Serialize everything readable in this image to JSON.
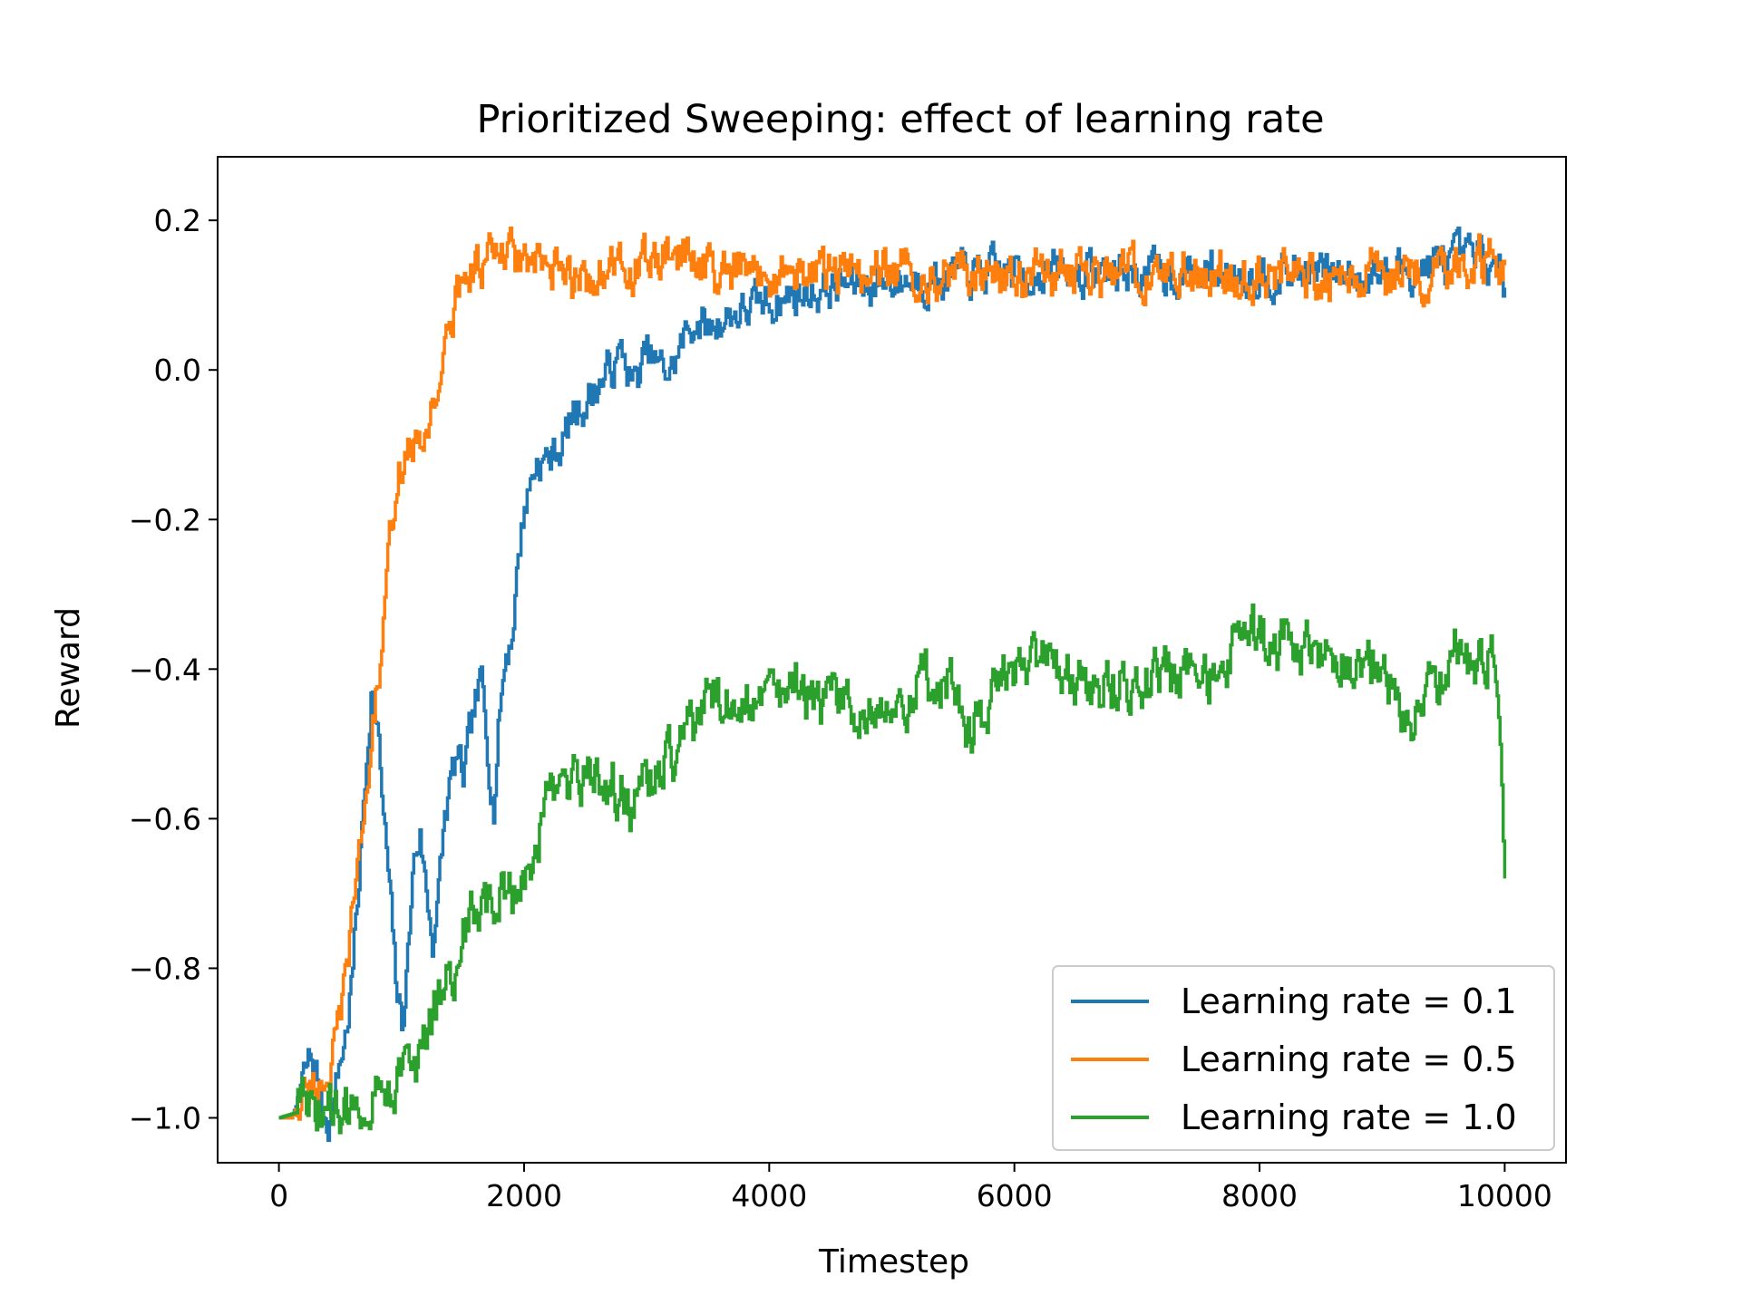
{
  "chart_data": {
    "type": "line",
    "title": "Prioritized Sweeping: effect of learning rate",
    "xlabel": "Timestep",
    "ylabel": "Reward",
    "xlim": [
      -500,
      10500
    ],
    "ylim": [
      -1.06,
      0.285
    ],
    "xticks": [
      0,
      2000,
      4000,
      6000,
      8000,
      10000
    ],
    "yticks": [
      -1.0,
      -0.8,
      -0.6,
      -0.4,
      -0.2,
      0.0,
      0.2
    ],
    "xtick_labels": [
      "0",
      "2000",
      "4000",
      "6000",
      "8000",
      "10000"
    ],
    "ytick_labels": [
      "−1.0",
      "−0.8",
      "−0.6",
      "−0.4",
      "−0.2",
      "0.0",
      "0.2"
    ],
    "grid": false,
    "legend_position": "lower-right",
    "series": [
      {
        "name": "Learning rate = 0.1",
        "color": "#1f77b4",
        "noise": 0.045,
        "x": [
          0,
          100,
          150,
          200,
          250,
          300,
          350,
          400,
          450,
          500,
          550,
          600,
          650,
          700,
          750,
          800,
          850,
          900,
          950,
          1000,
          1050,
          1100,
          1150,
          1200,
          1250,
          1300,
          1350,
          1400,
          1450,
          1500,
          1550,
          1600,
          1650,
          1700,
          1750,
          1800,
          1850,
          1900,
          1950,
          2000,
          2100,
          2200,
          2300,
          2400,
          2500,
          2600,
          2700,
          2800,
          2900,
          3000,
          3100,
          3200,
          3300,
          3400,
          3500,
          3600,
          3800,
          4000,
          4200,
          4500,
          5000,
          6000,
          7000,
          8000,
          9000,
          9500,
          9800,
          10000
        ],
        "y": [
          -1.0,
          -1.0,
          -0.98,
          -0.95,
          -0.92,
          -0.94,
          -0.99,
          -1.0,
          -0.97,
          -0.92,
          -0.88,
          -0.8,
          -0.68,
          -0.55,
          -0.42,
          -0.48,
          -0.6,
          -0.7,
          -0.82,
          -0.88,
          -0.78,
          -0.65,
          -0.62,
          -0.7,
          -0.76,
          -0.7,
          -0.6,
          -0.55,
          -0.52,
          -0.55,
          -0.5,
          -0.45,
          -0.42,
          -0.5,
          -0.58,
          -0.45,
          -0.38,
          -0.35,
          -0.25,
          -0.18,
          -0.12,
          -0.12,
          -0.1,
          -0.06,
          -0.04,
          -0.02,
          0.0,
          0.02,
          -0.02,
          0.02,
          0.0,
          0.0,
          0.04,
          0.07,
          0.05,
          0.07,
          0.08,
          0.09,
          0.1,
          0.11,
          0.12,
          0.13,
          0.13,
          0.13,
          0.13,
          0.14,
          0.15,
          0.11
        ]
      },
      {
        "name": "Learning rate = 0.5",
        "color": "#ff7f0e",
        "noise": 0.05,
        "x": [
          0,
          100,
          200,
          300,
          400,
          500,
          550,
          600,
          650,
          700,
          750,
          800,
          850,
          900,
          950,
          1000,
          1050,
          1100,
          1150,
          1200,
          1250,
          1300,
          1350,
          1400,
          1450,
          1500,
          1600,
          1700,
          1800,
          1900,
          2000,
          2200,
          2400,
          2600,
          2800,
          3000,
          3200,
          3400,
          3600,
          4000,
          5000,
          6000,
          7000,
          8000,
          9000,
          9500,
          9800,
          10000
        ],
        "y": [
          -1.0,
          -1.0,
          -0.97,
          -0.95,
          -0.94,
          -0.88,
          -0.8,
          -0.72,
          -0.66,
          -0.58,
          -0.5,
          -0.42,
          -0.35,
          -0.25,
          -0.14,
          -0.12,
          -0.1,
          -0.1,
          -0.12,
          -0.08,
          -0.04,
          -0.01,
          0.02,
          0.05,
          0.1,
          0.13,
          0.14,
          0.15,
          0.15,
          0.15,
          0.14,
          0.13,
          0.12,
          0.13,
          0.13,
          0.14,
          0.15,
          0.15,
          0.12,
          0.13,
          0.13,
          0.13,
          0.13,
          0.13,
          0.13,
          0.14,
          0.15,
          0.14
        ]
      },
      {
        "name": "Learning rate = 1.0",
        "color": "#2ca02c",
        "noise": 0.06,
        "x": [
          0,
          200,
          400,
          600,
          700,
          800,
          900,
          1000,
          1100,
          1200,
          1300,
          1400,
          1500,
          1600,
          1700,
          1800,
          1900,
          2000,
          2100,
          2200,
          2300,
          2400,
          2600,
          2800,
          2900,
          3000,
          3200,
          3400,
          3600,
          3800,
          4000,
          4200,
          4500,
          4800,
          5000,
          5200,
          5500,
          5600,
          5800,
          6000,
          6200,
          6500,
          6800,
          7000,
          7200,
          7500,
          7800,
          8000,
          8200,
          8500,
          8800,
          9000,
          9200,
          9400,
          9600,
          9800,
          9900,
          9950,
          10000
        ],
        "y": [
          -1.0,
          -0.99,
          -0.99,
          -1.0,
          -0.96,
          -0.95,
          -0.95,
          -0.94,
          -0.94,
          -0.9,
          -0.85,
          -0.8,
          -0.76,
          -0.72,
          -0.72,
          -0.7,
          -0.7,
          -0.67,
          -0.62,
          -0.58,
          -0.56,
          -0.56,
          -0.55,
          -0.57,
          -0.58,
          -0.55,
          -0.52,
          -0.47,
          -0.43,
          -0.44,
          -0.44,
          -0.43,
          -0.45,
          -0.44,
          -0.45,
          -0.42,
          -0.4,
          -0.5,
          -0.44,
          -0.42,
          -0.4,
          -0.43,
          -0.42,
          -0.42,
          -0.41,
          -0.42,
          -0.38,
          -0.36,
          -0.37,
          -0.38,
          -0.4,
          -0.38,
          -0.46,
          -0.44,
          -0.38,
          -0.4,
          -0.36,
          -0.42,
          -0.68
        ]
      }
    ]
  }
}
